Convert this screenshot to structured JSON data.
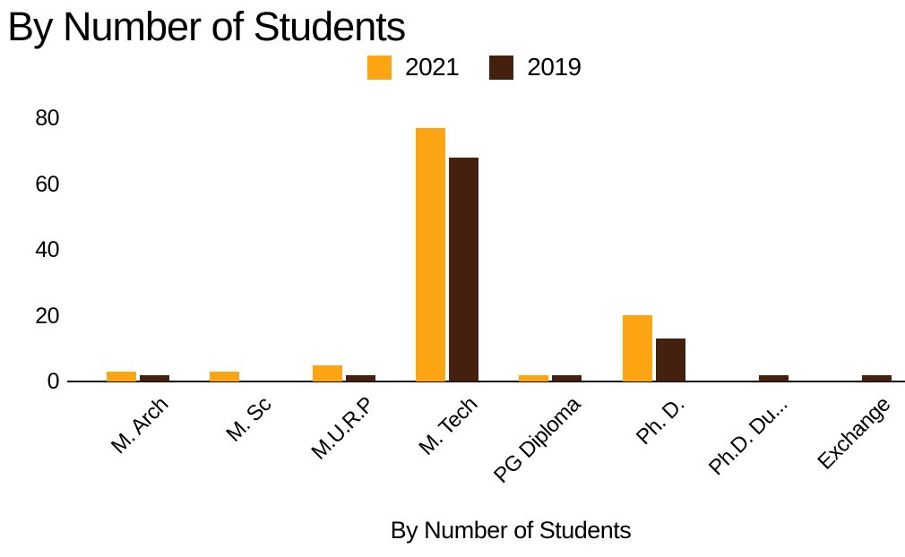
{
  "title": "By Number of Students",
  "colors": {
    "series_2021": "#FDA413",
    "series_2019": "#44200E",
    "axis": "#0A0A0A",
    "text": "#000000",
    "background": "#FFFFFF"
  },
  "legend": {
    "items": [
      {
        "label": "2021",
        "color": "#FDA413"
      },
      {
        "label": "2019",
        "color": "#44200E"
      }
    ]
  },
  "chart_data": {
    "type": "bar",
    "title": "By Number of Students",
    "xlabel": "By Number of Students",
    "ylabel": "",
    "categories": [
      "M. Arch",
      "M. Sc",
      "M.U.R.P",
      "M. Tech",
      "PG Diploma",
      "Ph. D.",
      "Ph.D. Du...",
      "Exchange"
    ],
    "series": [
      {
        "name": "2021",
        "color": "#FDA413",
        "values": [
          3,
          3,
          5,
          77,
          2,
          20,
          0,
          0
        ]
      },
      {
        "name": "2019",
        "color": "#44200E",
        "values": [
          2,
          0,
          2,
          68,
          2,
          13,
          2,
          2
        ]
      }
    ],
    "ylim": [
      0,
      80
    ],
    "yticks": [
      0,
      20,
      40,
      60,
      80
    ],
    "grid": false,
    "legend_position": "top-center",
    "x_tick_rotation_deg": -45
  }
}
